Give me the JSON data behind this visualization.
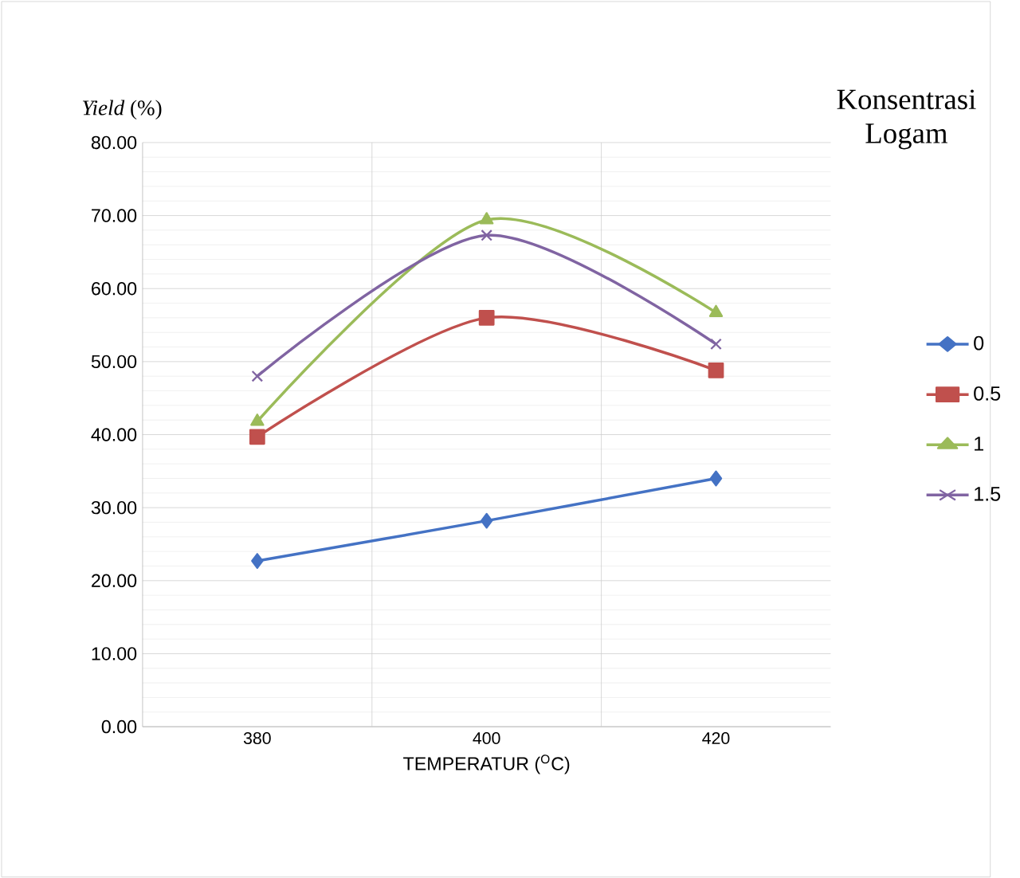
{
  "chart_data": {
    "type": "line",
    "ylabel": "*Yield* (%)",
    "xlabel": "TEMPERATUR ($^{O}$C)",
    "legend_title": "Konsentrasi Logam",
    "categories": [
      "380",
      "400",
      "420"
    ],
    "series": [
      {
        "name": "0",
        "color": "#4472c4",
        "marker": "diamond",
        "values": [
          22.7,
          28.2,
          34.0
        ]
      },
      {
        "name": "0.5",
        "color": "#c0504d",
        "marker": "square",
        "values": [
          39.7,
          56.0,
          48.8
        ]
      },
      {
        "name": "1",
        "color": "#9bbb59",
        "marker": "triangle",
        "values": [
          41.8,
          69.4,
          56.7
        ]
      },
      {
        "name": "1.5",
        "color": "#8064a2",
        "marker": "cross",
        "values": [
          48.0,
          67.3,
          52.4
        ]
      }
    ],
    "ylim": [
      0,
      80
    ],
    "yticks": [
      {
        "value": 0,
        "label": "0.00"
      },
      {
        "value": 10,
        "label": "10.00"
      },
      {
        "value": 20,
        "label": "20.00"
      },
      {
        "value": 30,
        "label": "30.00"
      },
      {
        "value": 40,
        "label": "40.00"
      },
      {
        "value": 50,
        "label": "50.00"
      },
      {
        "value": 60,
        "label": "60.00"
      },
      {
        "value": 70,
        "label": "70.00"
      },
      {
        "value": 80,
        "label": "80.00"
      }
    ],
    "grid": true,
    "legend": "right",
    "line_style": "solid"
  }
}
